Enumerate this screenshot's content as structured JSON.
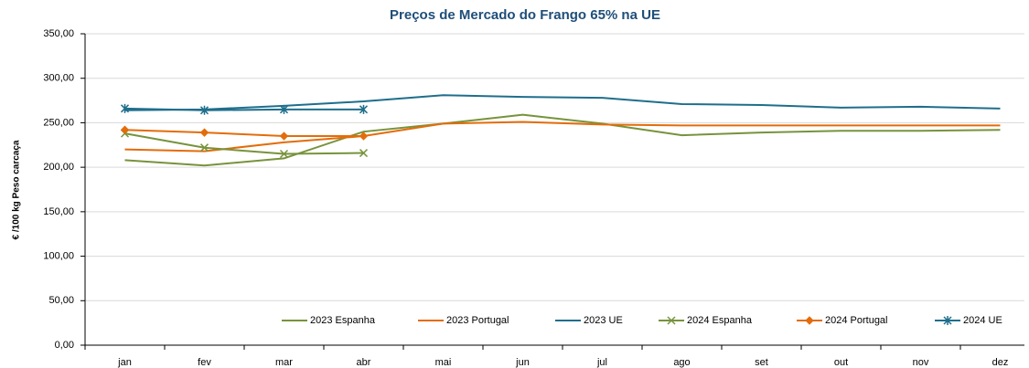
{
  "chart_data": {
    "type": "line",
    "title": "Preços de Mercado do Frango 65% na UE",
    "y_label": "€ /100 kg Peso carcaça",
    "categories": [
      "jan",
      "fev",
      "mar",
      "abr",
      "mai",
      "jun",
      "jul",
      "ago",
      "set",
      "out",
      "nov",
      "dez"
    ],
    "series": [
      {
        "name": "2023 Espanha",
        "color": "#77933c",
        "values": [
          208,
          202,
          210,
          240,
          249,
          259,
          249,
          236,
          239,
          241,
          241,
          242
        ]
      },
      {
        "name": "2023 Portugal",
        "color": "#e46c0a",
        "values": [
          220,
          218,
          228,
          235,
          249,
          251,
          248,
          247,
          247,
          247,
          247,
          247
        ]
      },
      {
        "name": "2023 UE",
        "color": "#1f6e8c",
        "values": [
          264,
          265,
          269,
          274,
          281,
          279,
          278,
          271,
          270,
          267,
          268,
          266
        ]
      },
      {
        "name": "2024 Espanha",
        "color": "#77933c",
        "marker": "x",
        "values": [
          238,
          222,
          215,
          216,
          null,
          null,
          null,
          null,
          null,
          null,
          null,
          null
        ]
      },
      {
        "name": "2024 Portugal",
        "color": "#e46c0a",
        "marker": "diamond",
        "values": [
          242,
          239,
          235,
          235,
          null,
          null,
          null,
          null,
          null,
          null,
          null,
          null
        ]
      },
      {
        "name": "2024 UE",
        "color": "#1f6e8c",
        "marker": "asterisk",
        "values": [
          266,
          264,
          265,
          265,
          null,
          null,
          null,
          null,
          null,
          null,
          null,
          null
        ]
      }
    ],
    "ylim": [
      0,
      350
    ],
    "yticks": [
      {
        "value": 0,
        "label": "0,00"
      },
      {
        "value": 50,
        "label": "50,00"
      },
      {
        "value": 100,
        "label": "100,00"
      },
      {
        "value": 150,
        "label": "150,00"
      },
      {
        "value": 200,
        "label": "200,00"
      },
      {
        "value": 250,
        "label": "250,00"
      },
      {
        "value": 300,
        "label": "300,00"
      },
      {
        "value": 350,
        "label": "350,00"
      }
    ],
    "grid": true
  }
}
